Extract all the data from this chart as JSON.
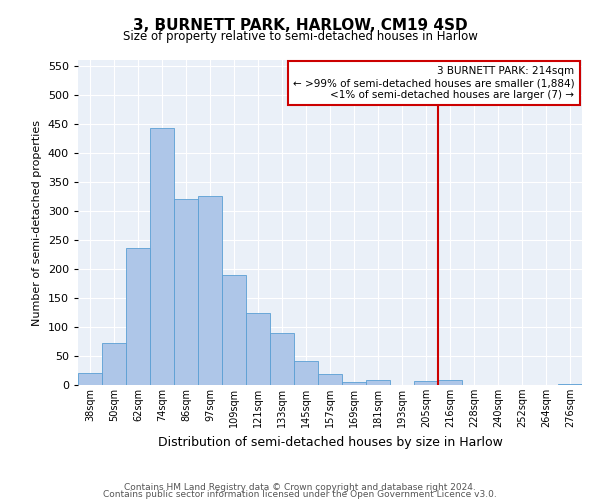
{
  "title": "3, BURNETT PARK, HARLOW, CM19 4SD",
  "subtitle": "Size of property relative to semi-detached houses in Harlow",
  "xlabel": "Distribution of semi-detached houses by size in Harlow",
  "ylabel": "Number of semi-detached properties",
  "bar_labels": [
    "38sqm",
    "50sqm",
    "62sqm",
    "74sqm",
    "86sqm",
    "97sqm",
    "109sqm",
    "121sqm",
    "133sqm",
    "145sqm",
    "157sqm",
    "169sqm",
    "181sqm",
    "193sqm",
    "205sqm",
    "216sqm",
    "228sqm",
    "240sqm",
    "252sqm",
    "264sqm",
    "276sqm"
  ],
  "bar_values": [
    20,
    72,
    236,
    443,
    321,
    325,
    190,
    124,
    90,
    42,
    19,
    5,
    8,
    0,
    7,
    9,
    0,
    0,
    0,
    0,
    2
  ],
  "bar_color": "#aec6e8",
  "bar_edge_color": "#5a9fd4",
  "ylim": [
    0,
    560
  ],
  "yticks": [
    0,
    50,
    100,
    150,
    200,
    250,
    300,
    350,
    400,
    450,
    500,
    550
  ],
  "vline_x_index": 15,
  "vline_color": "#cc0000",
  "annotation_title": "3 BURNETT PARK: 214sqm",
  "annotation_line1": "← >99% of semi-detached houses are smaller (1,884)",
  "annotation_line2": "<1% of semi-detached houses are larger (7) →",
  "footer1": "Contains HM Land Registry data © Crown copyright and database right 2024.",
  "footer2": "Contains public sector information licensed under the Open Government Licence v3.0.",
  "plot_bg_color": "#eaf0f8"
}
